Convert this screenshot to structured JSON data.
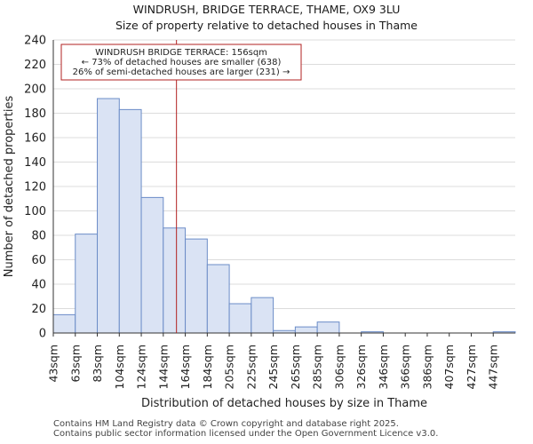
{
  "chart_data": {
    "type": "bar",
    "title": "WINDRUSH, BRIDGE TERRACE, THAME, OX9 3LU",
    "subtitle": "Size of property relative to detached houses in Thame",
    "xlabel": "Distribution of detached houses by size in Thame",
    "ylabel": "Number of detached properties",
    "categories": [
      "43sqm",
      "63sqm",
      "83sqm",
      "104sqm",
      "124sqm",
      "144sqm",
      "164sqm",
      "184sqm",
      "205sqm",
      "225sqm",
      "245sqm",
      "265sqm",
      "285sqm",
      "306sqm",
      "326sqm",
      "346sqm",
      "366sqm",
      "386sqm",
      "407sqm",
      "427sqm",
      "447sqm"
    ],
    "values": [
      15,
      81,
      192,
      183,
      111,
      86,
      77,
      56,
      24,
      29,
      2,
      5,
      9,
      0,
      1,
      0,
      0,
      0,
      0,
      0,
      1
    ],
    "ylim": [
      0,
      240
    ],
    "yticks": [
      0,
      20,
      40,
      60,
      80,
      100,
      120,
      140,
      160,
      180,
      200,
      220,
      240
    ],
    "marker_value": 156,
    "marker_position_bins": 5.6,
    "annotation": {
      "line1": "WINDRUSH BRIDGE TERRACE: 156sqm",
      "line2": "← 73% of detached houses are smaller (638)",
      "line3": "26% of semi-detached houses are larger (231) →"
    },
    "colors": {
      "bar_fill": "#dae3f4",
      "bar_stroke": "#6b8cc7",
      "marker": "#b22222",
      "grid": "#dcdcdc"
    },
    "grid": true
  },
  "footer": {
    "line1": "Contains HM Land Registry data © Crown copyright and database right 2025.",
    "line2": "Contains public sector information licensed under the Open Government Licence v3.0."
  }
}
